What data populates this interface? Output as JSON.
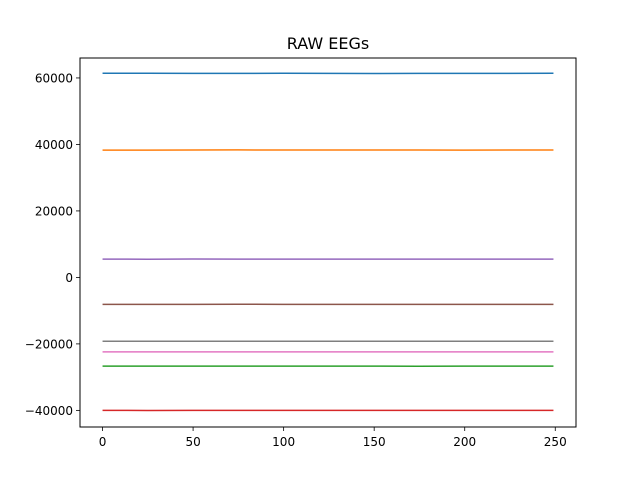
{
  "chart_data": {
    "type": "line",
    "title": "RAW EEGs",
    "xlabel": "",
    "ylabel": "",
    "xlim": [
      -12.45,
      261.45
    ],
    "ylim": [
      -45000,
      66000
    ],
    "grid": false,
    "legend": "none",
    "x_ticks": [
      0,
      50,
      100,
      150,
      200,
      250
    ],
    "y_ticks": [
      -40000,
      -20000,
      0,
      20000,
      40000,
      60000
    ],
    "x_range": [
      0,
      249
    ],
    "series": [
      {
        "color": "#1f77b4",
        "values": [
          61400,
          61400,
          61380,
          61390,
          61400,
          61380,
          61350,
          61370,
          61380,
          61380,
          61400
        ]
      },
      {
        "color": "#ff7f0e",
        "values": [
          38300,
          38300,
          38310,
          38350,
          38330,
          38330,
          38320,
          38310,
          38280,
          38320,
          38320
        ]
      },
      {
        "color": "#2ca02c",
        "values": [
          -26700,
          -26700,
          -26690,
          -26700,
          -26700,
          -26700,
          -26700,
          -26710,
          -26700,
          -26700,
          -26700
        ]
      },
      {
        "color": "#d62728",
        "values": [
          -40000,
          -40020,
          -39990,
          -40000,
          -40000,
          -40010,
          -40000,
          -40000,
          -40000,
          -40000,
          -40000
        ]
      },
      {
        "color": "#9467bd",
        "values": [
          5500,
          5480,
          5520,
          5510,
          5500,
          5500,
          5490,
          5510,
          5500,
          5490,
          5500
        ]
      },
      {
        "color": "#8c564b",
        "values": [
          -8100,
          -8110,
          -8100,
          -8090,
          -8100,
          -8100,
          -8100,
          -8110,
          -8100,
          -8100,
          -8100
        ]
      },
      {
        "color": "#e377c2",
        "values": [
          -22400,
          -22400,
          -22390,
          -22410,
          -22400,
          -22400,
          -22400,
          -22400,
          -22410,
          -22400,
          -22400
        ]
      },
      {
        "color": "#7f7f7f",
        "values": [
          -19200,
          -19200,
          -19210,
          -19200,
          -19190,
          -19200,
          -19200,
          -19200,
          -19200,
          -19210,
          -19200
        ]
      }
    ]
  }
}
